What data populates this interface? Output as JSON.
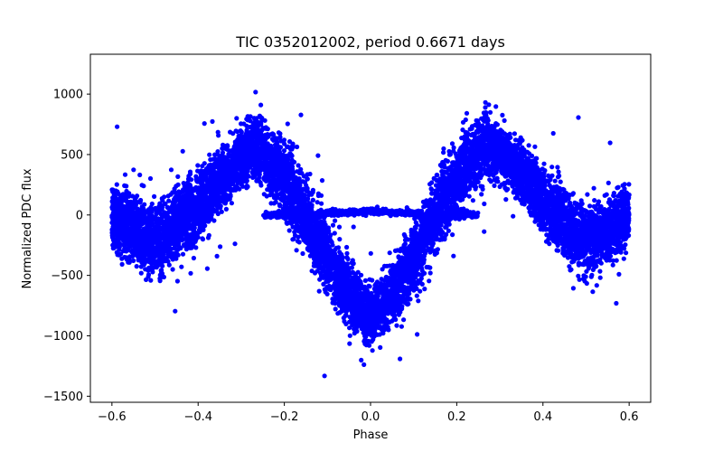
{
  "chart_data": {
    "type": "scatter",
    "title": "TIC 0352012002, period 0.6671 days",
    "xlabel": "Phase",
    "ylabel": "Normalized PDC flux",
    "xlim": [
      -0.65,
      0.65
    ],
    "ylim": [
      -1550,
      1330
    ],
    "xticks": [
      -0.6,
      -0.4,
      -0.2,
      0.0,
      0.2,
      0.4,
      0.6
    ],
    "xtick_labels": [
      "−0.6",
      "−0.4",
      "−0.2",
      "0.0",
      "0.2",
      "0.4",
      "0.6"
    ],
    "yticks": [
      -1500,
      -1000,
      -500,
      0,
      500,
      1000
    ],
    "ytick_labels": [
      "−1500",
      "−1000",
      "−500",
      "0",
      "500",
      "1000"
    ],
    "marker_color": "#0000ff",
    "series": [
      {
        "name": "Normalized PDC flux",
        "description_of_trend_points": "phase-folded light curve; dense band around this mean curve with scatter of roughly +/-300",
        "x": [
          -0.6,
          -0.55,
          -0.5,
          -0.45,
          -0.4,
          -0.35,
          -0.3,
          -0.27,
          -0.25,
          -0.2,
          -0.15,
          -0.1,
          -0.05,
          0.0,
          0.05,
          0.1,
          0.15,
          0.2,
          0.25,
          0.27,
          0.3,
          0.35,
          0.4,
          0.45,
          0.5,
          0.55,
          0.6
        ],
        "y": [
          0,
          -130,
          -220,
          -80,
          60,
          280,
          480,
          560,
          520,
          300,
          0,
          -350,
          -650,
          -850,
          -650,
          -350,
          0,
          300,
          520,
          580,
          520,
          350,
          120,
          -60,
          -220,
          -130,
          0
        ]
      },
      {
        "name": "Flat branch",
        "x": [
          -0.25,
          -0.2,
          -0.15,
          -0.1,
          -0.05,
          0.0,
          0.05,
          0.1,
          0.15,
          0.2,
          0.25
        ],
        "y": [
          0,
          0,
          -20,
          20,
          20,
          30,
          20,
          20,
          -20,
          0,
          0
        ]
      }
    ],
    "point_count": 14000
  }
}
